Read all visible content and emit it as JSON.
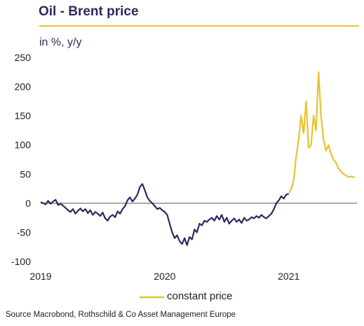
{
  "header": {
    "title": "Oil - Brent price",
    "subtitle": "in %, y/y"
  },
  "legend": {
    "label": "constant price"
  },
  "source": "Source Macrobond, Rothschild & Co Asset Management Europe",
  "colors": {
    "pre2021": "#2e2a5e",
    "post2021": "#e8c22f",
    "zero_line": "#8c8c8c",
    "title": "#2e2a5e"
  },
  "chart_data": {
    "type": "line",
    "title": "Oil - Brent price",
    "ylabel": "in %, y/y",
    "xlabel": "",
    "ylim": [
      -100,
      250
    ],
    "xlim": [
      2019.0,
      2021.55
    ],
    "y_ticks": [
      250,
      200,
      150,
      100,
      50,
      0,
      -50,
      -100
    ],
    "x_ticks": [
      "2019",
      "2020",
      "2021"
    ],
    "grid": false,
    "legend_position": "bottom",
    "series": [
      {
        "name": "constant price",
        "x": [
          2019.0,
          2019.02,
          2019.04,
          2019.06,
          2019.08,
          2019.1,
          2019.12,
          2019.14,
          2019.16,
          2019.18,
          2019.2,
          2019.22,
          2019.24,
          2019.26,
          2019.28,
          2019.3,
          2019.32,
          2019.34,
          2019.36,
          2019.38,
          2019.4,
          2019.42,
          2019.44,
          2019.46,
          2019.48,
          2019.5,
          2019.52,
          2019.54,
          2019.56,
          2019.58,
          2019.6,
          2019.62,
          2019.64,
          2019.66,
          2019.68,
          2019.7,
          2019.72,
          2019.74,
          2019.76,
          2019.78,
          2019.8,
          2019.82,
          2019.84,
          2019.86,
          2019.88,
          2019.9,
          2019.92,
          2019.94,
          2019.96,
          2019.98,
          2020.0,
          2020.02,
          2020.04,
          2020.06,
          2020.08,
          2020.1,
          2020.12,
          2020.14,
          2020.16,
          2020.18,
          2020.2,
          2020.22,
          2020.24,
          2020.26,
          2020.28,
          2020.3,
          2020.32,
          2020.34,
          2020.36,
          2020.38,
          2020.4,
          2020.42,
          2020.44,
          2020.46,
          2020.48,
          2020.5,
          2020.52,
          2020.54,
          2020.56,
          2020.58,
          2020.6,
          2020.62,
          2020.64,
          2020.66,
          2020.68,
          2020.7,
          2020.72,
          2020.74,
          2020.76,
          2020.78,
          2020.8,
          2020.82,
          2020.84,
          2020.86,
          2020.88,
          2020.9,
          2020.92,
          2020.94,
          2020.96,
          2020.98,
          2021.0,
          2021.02,
          2021.04,
          2021.06,
          2021.08,
          2021.1,
          2021.12,
          2021.14,
          2021.16,
          2021.18,
          2021.2,
          2021.22,
          2021.24,
          2021.26,
          2021.28,
          2021.3,
          2021.32,
          2021.34,
          2021.36,
          2021.38,
          2021.4,
          2021.42,
          2021.44,
          2021.46,
          2021.48,
          2021.5,
          2021.53
        ],
        "y": [
          2,
          0,
          -2,
          4,
          -1,
          3,
          6,
          -3,
          -1,
          -4,
          -8,
          -12,
          -15,
          -10,
          -18,
          -13,
          -9,
          -14,
          -10,
          -17,
          -12,
          -20,
          -15,
          -18,
          -22,
          -16,
          -26,
          -30,
          -23,
          -20,
          -24,
          -14,
          -18,
          -10,
          -5,
          5,
          10,
          3,
          8,
          15,
          28,
          33,
          22,
          10,
          4,
          0,
          -5,
          -10,
          -8,
          -12,
          -15,
          -20,
          -35,
          -50,
          -60,
          -55,
          -65,
          -70,
          -60,
          -72,
          -58,
          -62,
          -45,
          -50,
          -35,
          -38,
          -30,
          -32,
          -28,
          -25,
          -30,
          -22,
          -28,
          -20,
          -32,
          -25,
          -35,
          -30,
          -26,
          -32,
          -28,
          -34,
          -25,
          -30,
          -28,
          -24,
          -26,
          -22,
          -25,
          -20,
          -24,
          -26,
          -22,
          -18,
          -10,
          0,
          5,
          12,
          8,
          15,
          16,
          25,
          40,
          80,
          110,
          150,
          120,
          175,
          95,
          100,
          150,
          125,
          225,
          150,
          110,
          90,
          100,
          85,
          75,
          70,
          60,
          55,
          50,
          48,
          45,
          46,
          44
        ]
      }
    ]
  }
}
